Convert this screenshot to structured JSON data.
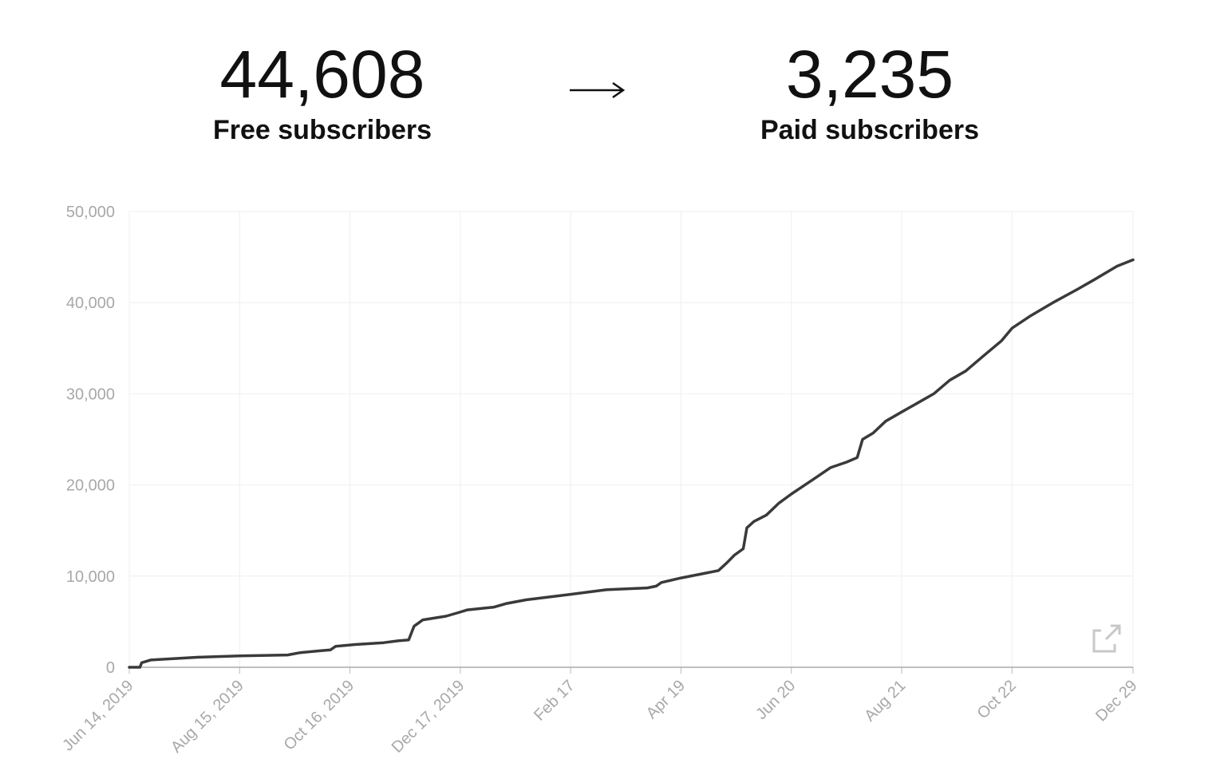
{
  "header": {
    "free": {
      "value": "44,608",
      "label": "Free subscribers"
    },
    "paid": {
      "value": "3,235",
      "label": "Paid subscribers"
    }
  },
  "chart_data": {
    "type": "line",
    "color": "#3a3a3a",
    "grid": true,
    "x": [
      0,
      6,
      7,
      12,
      39,
      62,
      89,
      96,
      107,
      113,
      116,
      127,
      143,
      151,
      157,
      160,
      165,
      178,
      185,
      190,
      205,
      212,
      223,
      248,
      268,
      291,
      296,
      299,
      310,
      331,
      336,
      340,
      345,
      347,
      351,
      358,
      365,
      372,
      385,
      394,
      403,
      409,
      412,
      418,
      425,
      434,
      443,
      452,
      461,
      470,
      479,
      490,
      496,
      506,
      519,
      533,
      542,
      555,
      564
    ],
    "values": [
      0,
      0,
      500,
      800,
      1100,
      1250,
      1350,
      1600,
      1800,
      1900,
      2300,
      2500,
      2700,
      2900,
      3000,
      4500,
      5200,
      5600,
      6000,
      6300,
      6600,
      7000,
      7400,
      8000,
      8500,
      8700,
      8900,
      9300,
      9800,
      10600,
      11500,
      12300,
      13000,
      15300,
      16000,
      16700,
      18000,
      19000,
      20700,
      21900,
      22500,
      23000,
      25000,
      25700,
      27000,
      28000,
      29000,
      30000,
      31500,
      32500,
      34000,
      35800,
      37200,
      38500,
      40000,
      41500,
      42500,
      44000,
      44700
    ],
    "xlim": [
      0,
      564
    ],
    "xticks": [
      {
        "value": 0,
        "label": "Jun 14, 2019"
      },
      {
        "value": 62,
        "label": "Aug 15, 2019"
      },
      {
        "value": 124,
        "label": "Oct 16, 2019"
      },
      {
        "value": 186,
        "label": "Dec 17, 2019"
      },
      {
        "value": 248,
        "label": "Feb 17"
      },
      {
        "value": 310,
        "label": "Apr 19"
      },
      {
        "value": 372,
        "label": "Jun 20"
      },
      {
        "value": 434,
        "label": "Aug 21"
      },
      {
        "value": 496,
        "label": "Oct 22"
      },
      {
        "value": 564,
        "label": "Dec 29"
      }
    ],
    "ylim": [
      0,
      50000
    ],
    "yticks": [
      0,
      {
        "value": 10000,
        "label": "10,000"
      },
      {
        "value": 20000,
        "label": "20,000"
      },
      {
        "value": 30000,
        "label": "30,000"
      },
      {
        "value": 40000,
        "label": "40,000"
      },
      {
        "value": 50000,
        "label": "50,000"
      }
    ]
  }
}
